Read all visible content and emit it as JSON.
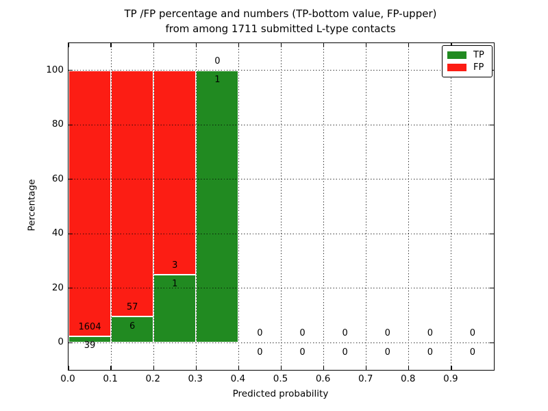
{
  "chart_data": {
    "type": "bar",
    "stacked": true,
    "title_lines": [
      "TP /FP percentage and numbers (TP-bottom value, FP-upper)",
      "from among 1711 submitted L-type contacts"
    ],
    "xlabel": "Predicted probability",
    "ylabel": "Percentage",
    "xlim": [
      0.0,
      1.0
    ],
    "ylim": [
      -10,
      110
    ],
    "x_tick_labels": [
      "0.0",
      "0.1",
      "0.2",
      "0.3",
      "0.4",
      "0.5",
      "0.6",
      "0.7",
      "0.8",
      "0.9"
    ],
    "y_tick_labels": [
      "0",
      "20",
      "40",
      "60",
      "80",
      "100"
    ],
    "grid": "dotted, both axes, drawn above bars",
    "bin_width": 0.1,
    "total_submitted": 1711,
    "annotation_rule": "per bin: FP count printed above TP/FP boundary, TP count printed below it; empty bins show 0 over 0",
    "bins": [
      {
        "x0": 0.0,
        "x1": 0.1,
        "tp": 39,
        "fp": 1604
      },
      {
        "x0": 0.1,
        "x1": 0.2,
        "tp": 6,
        "fp": 57
      },
      {
        "x0": 0.2,
        "x1": 0.3,
        "tp": 1,
        "fp": 3
      },
      {
        "x0": 0.3,
        "x1": 0.4,
        "tp": 1,
        "fp": 0
      },
      {
        "x0": 0.4,
        "x1": 0.5,
        "tp": 0,
        "fp": 0
      },
      {
        "x0": 0.5,
        "x1": 0.6,
        "tp": 0,
        "fp": 0
      },
      {
        "x0": 0.6,
        "x1": 0.7,
        "tp": 0,
        "fp": 0
      },
      {
        "x0": 0.7,
        "x1": 0.8,
        "tp": 0,
        "fp": 0
      },
      {
        "x0": 0.8,
        "x1": 0.9,
        "tp": 0,
        "fp": 0
      },
      {
        "x0": 0.9,
        "x1": 1.0,
        "tp": 0,
        "fp": 0
      }
    ],
    "colors": {
      "tp": "#218a21",
      "fp": "#fc1d14",
      "bar_edge": "#ffffff",
      "grid": "#000000",
      "text": "#000000",
      "frame": "#000000"
    },
    "legend": {
      "position": "upper right",
      "items": [
        {
          "label": "TP",
          "color_key": "tp"
        },
        {
          "label": "FP",
          "color_key": "fp"
        }
      ]
    }
  }
}
